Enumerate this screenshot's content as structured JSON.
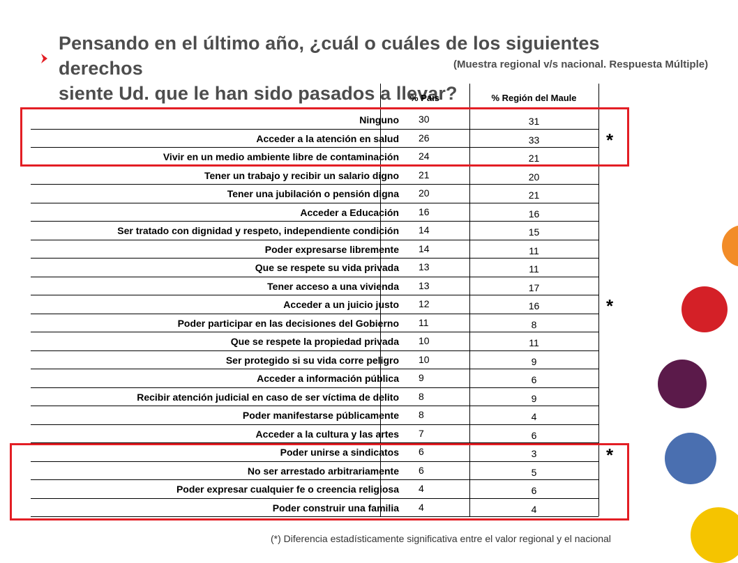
{
  "title_line1": "Pensando en el último año, ¿cuál o cuáles de los siguientes derechos",
  "title_line2": "siente Ud. que le han sido pasados a llevar?",
  "subtitle": "(Muestra regional v/s nacional. Respuesta Múltiple)",
  "columns": {
    "pais": "% País",
    "region": "% Región del Maule"
  },
  "rows": [
    {
      "label": "Ninguno",
      "pais": "30",
      "region": "31"
    },
    {
      "label": "Acceder a la atención en salud",
      "pais": "26",
      "region": "33"
    },
    {
      "label": "Vivir en un medio ambiente libre de contaminación",
      "pais": "24",
      "region": "21"
    },
    {
      "label": "Tener un trabajo y recibir un salario digno",
      "pais": "21",
      "region": "20"
    },
    {
      "label": "Tener una jubilación o pensión digna",
      "pais": "20",
      "region": "21"
    },
    {
      "label": "Acceder a Educación",
      "pais": "16",
      "region": "16"
    },
    {
      "label": "Ser tratado con dignidad y respeto, independiente condición",
      "pais": "14",
      "region": "15"
    },
    {
      "label": "Poder expresarse libremente",
      "pais": "14",
      "region": "11"
    },
    {
      "label": "Que se respete su vida privada",
      "pais": "13",
      "region": "11"
    },
    {
      "label": "Tener acceso a una vivienda",
      "pais": "13",
      "region": "17"
    },
    {
      "label": "Acceder a un juicio justo",
      "pais": "12",
      "region": "16"
    },
    {
      "label": "Poder participar en las decisiones del Gobierno",
      "pais": "11",
      "region": "8"
    },
    {
      "label": "Que se respete la propiedad privada",
      "pais": "10",
      "region": "11"
    },
    {
      "label": "Ser protegido si su vida corre peligro",
      "pais": "10",
      "region": "9"
    },
    {
      "label": "Acceder a información pública",
      "pais": "9",
      "region": "6"
    },
    {
      "label": "Recibir atención judicial en caso de ser víctima de delito",
      "pais": "8",
      "region": "9"
    },
    {
      "label": "Poder manifestarse públicamente",
      "pais": "8",
      "region": "4"
    },
    {
      "label": "Acceder a la cultura y las artes",
      "pais": "7",
      "region": "6"
    },
    {
      "label": "Poder unirse a sindicatos",
      "pais": "6",
      "region": "3"
    },
    {
      "label": "No ser arrestado arbitrariamente",
      "pais": "6",
      "region": "5"
    },
    {
      "label": "Poder expresar cualquier fe o creencia religiosa",
      "pais": "4",
      "region": "6"
    },
    {
      "label": "Poder construir una familia",
      "pais": "4",
      "region": "4"
    }
  ],
  "asterisks": [
    "*",
    "*",
    "*"
  ],
  "footnote": "(*) Diferencia estadísticamente significativa entre el valor regional y el nacional",
  "colors": {
    "highlight_box": "#e31e24",
    "title_text": "#4d4d4d",
    "dot_orange": "#f28c28",
    "dot_red": "#d42027",
    "dot_purple": "#5b1a4a",
    "dot_blue": "#4a6fb0",
    "dot_yellow": "#f5c400"
  }
}
